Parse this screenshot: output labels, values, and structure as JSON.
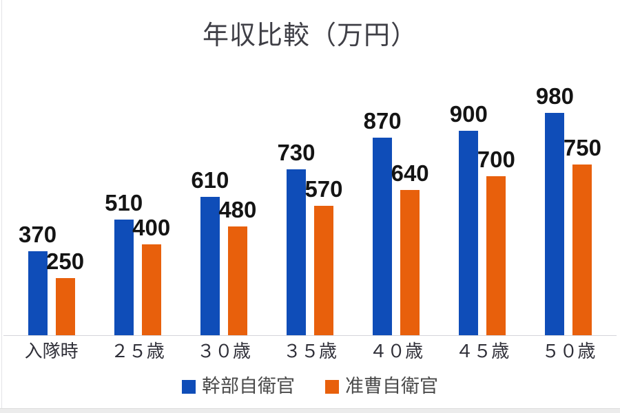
{
  "chart_data": {
    "type": "bar",
    "title": "年収比較（万円）",
    "categories": [
      "入隊時",
      "２５歳",
      "３０歳",
      "３５歳",
      "４０歳",
      "４５歳",
      "５０歳"
    ],
    "series": [
      {
        "name": "幹部自衛官",
        "color": "#0F4DB8",
        "values": [
          370,
          510,
          610,
          730,
          870,
          900,
          980
        ]
      },
      {
        "name": "准曹自衛官",
        "color": "#E8600C",
        "values": [
          250,
          400,
          480,
          570,
          640,
          700,
          750
        ]
      }
    ],
    "ylim": [
      0,
      1050
    ],
    "value_axis_visible": false,
    "grid": false,
    "data_labels": true,
    "legend_position": "bottom",
    "axis_line_color": "#d4d4da",
    "label_color": "#141414"
  }
}
